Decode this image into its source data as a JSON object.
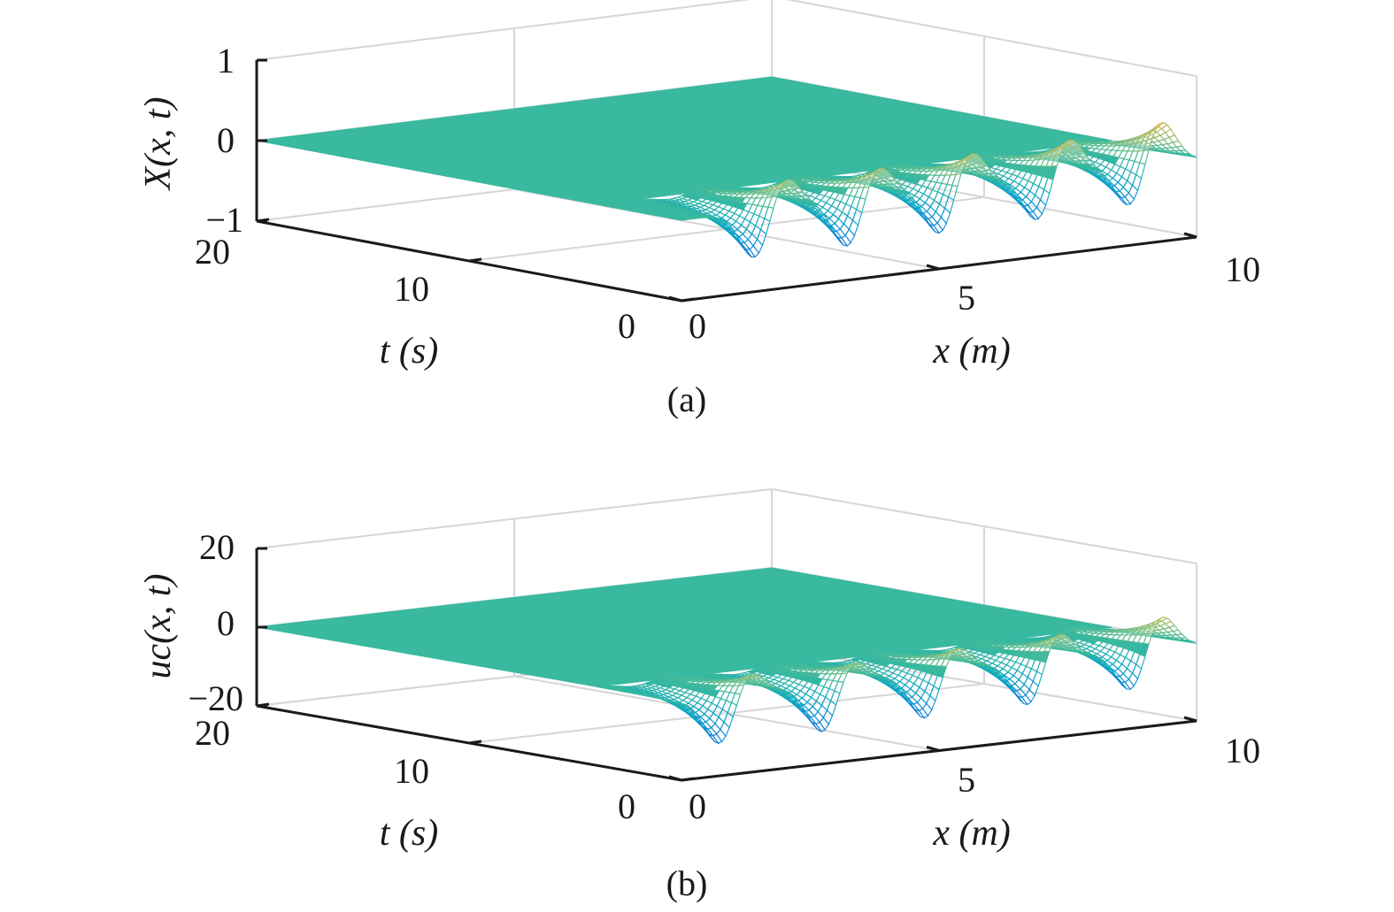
{
  "chart_data": [
    {
      "type": "surface",
      "caption": "(a)",
      "x_label": "x (m)",
      "t_label": "t (s)",
      "z_label": "X(x, t)",
      "x_range": [
        0,
        10
      ],
      "t_range": [
        0,
        20
      ],
      "z_range": [
        -1,
        1
      ],
      "x_ticks": [
        "0",
        "5",
        "10"
      ],
      "t_ticks": [
        "0",
        "10",
        "20"
      ],
      "z_ticks": [
        "1",
        "0",
        "−1"
      ],
      "grid": true,
      "colormap": "parula",
      "peaks": [
        {
          "x": 1.7,
          "max": 0.75,
          "min": -0.95
        },
        {
          "x": 3.5,
          "max": 0.75,
          "min": -0.95
        },
        {
          "x": 5.3,
          "max": 0.8,
          "min": -0.95
        },
        {
          "x": 7.2,
          "max": 0.85,
          "min": -0.95
        },
        {
          "x": 9.0,
          "max": 0.9,
          "min": -0.95
        }
      ]
    },
    {
      "type": "surface",
      "caption": "(b)",
      "x_label": "x (m)",
      "t_label": "t (s)",
      "z_label": "uc(x, t)",
      "x_range": [
        0,
        10
      ],
      "t_range": [
        0,
        20
      ],
      "z_range": [
        -20,
        20
      ],
      "x_ticks": [
        "0",
        "5",
        "10"
      ],
      "t_ticks": [
        "0",
        "10",
        "20"
      ],
      "z_ticks": [
        "20",
        "0",
        "−20"
      ],
      "grid": true,
      "colormap": "parula",
      "peaks": [
        {
          "x": 1.0,
          "max": 12,
          "min": -18
        },
        {
          "x": 3.0,
          "max": 12,
          "min": -18
        },
        {
          "x": 5.0,
          "max": 13,
          "min": -18
        },
        {
          "x": 7.0,
          "max": 14,
          "min": -18
        },
        {
          "x": 9.0,
          "max": 15,
          "min": -18
        }
      ]
    }
  ]
}
